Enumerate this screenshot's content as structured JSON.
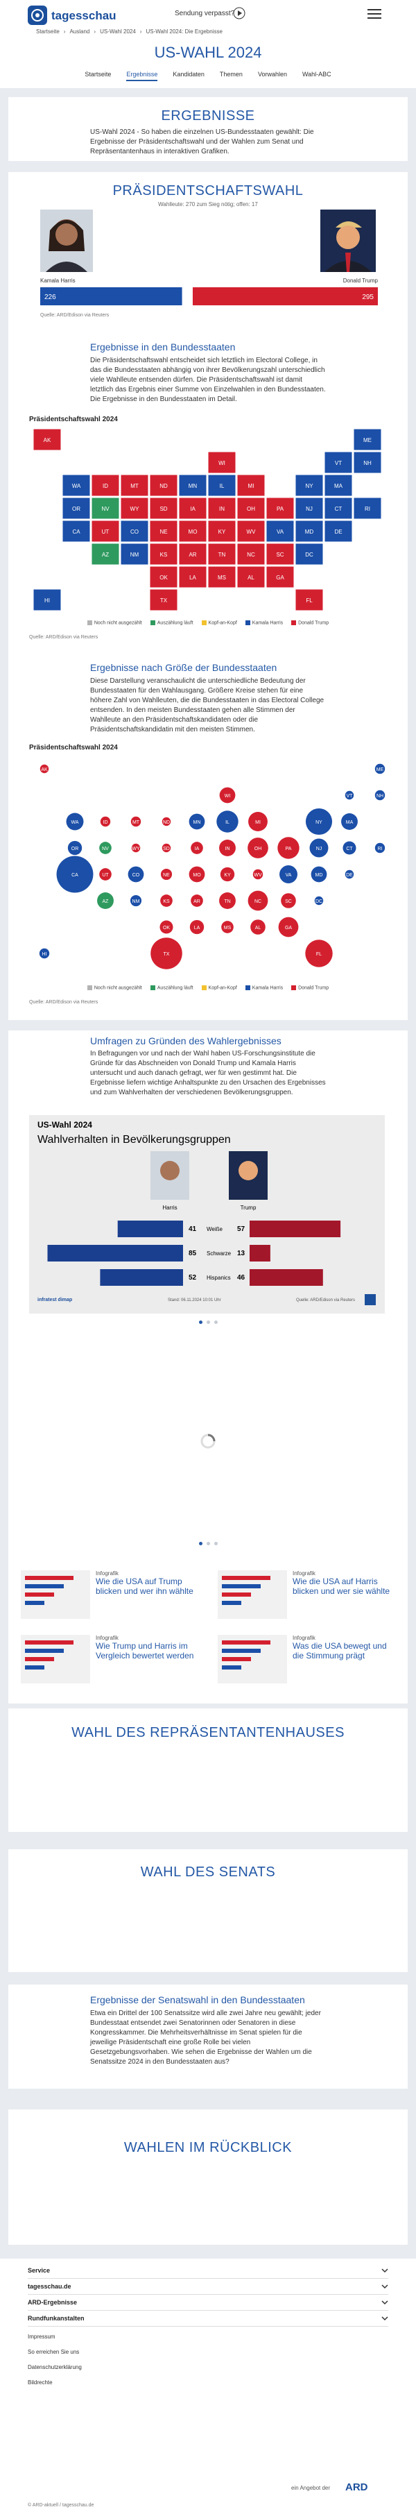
{
  "header": {
    "logo": "tagesschau",
    "missed": "Sendung verpasst?"
  },
  "breadcrumb": [
    "Startseite",
    "Ausland",
    "US-Wahl 2024",
    "US-Wahl 2024: Die Ergebnisse"
  ],
  "page_title": "US-WAHL 2024",
  "nav": [
    "Startseite",
    "Ergebnisse",
    "Kandidaten",
    "Themen",
    "Vorwahlen",
    "Wahl-ABC"
  ],
  "intro": {
    "title": "ERGEBNISSE",
    "text": "US-Wahl 2024 - So haben die einzelnen US-Bundesstaaten gewählt: Die Ergebnisse der Präsidentschaftswahl und der Wahlen zum Senat und Repräsentantenhaus in interaktiven Grafiken."
  },
  "president": {
    "title": "PRÄSIDENTSCHAFTSWAHL",
    "subtitle": "Wahlleute: 270 zum Sieg nötig; offen: 17"
  },
  "sections": {
    "states": {
      "title": "Ergebnisse in den Bundesstaaten",
      "text": "Die Präsidentschaftswahl entscheidet sich letztlich im Electoral College, in das die Bundesstaaten abhängig von ihrer Bevölkerungszahl unterschiedlich viele Wahlleute entsenden dürfen. Die Präsidentschaftswahl ist damit letztlich das Ergebnis einer Summe von Einzelwahlen in den Bundesstaaten. Die Ergebnisse in den Bundesstaaten im Detail."
    },
    "size": {
      "title": "Ergebnisse nach Größe der Bundesstaaten",
      "text": "Diese Darstellung veranschaulicht die unterschiedliche Bedeutung der Bundesstaaten für den Wahlausgang. Größere Kreise stehen für eine höhere Zahl von Wahlleuten, die die Bundesstaaten in das Electoral College entsenden. In den meisten Bundesstaaten gehen alle Stimmen der Wahlleute an den Präsidentschaftskandidaten oder die Präsidentschaftskandidatin mit den meisten Stimmen."
    },
    "polls": {
      "title": "Umfragen zu Gründen des Wahlergebnisses",
      "text": "In Befragungen vor und nach der Wahl haben US-Forschungsinstitute die Gründe für das Abschneiden von Donald Trump und Kamala Harris untersucht und auch danach gefragt, wer für wen gestimmt hat. Die Ergebnisse liefern wichtige Anhaltspunkte zu den Ursachen des Ergebnisses und zum Wahlverhalten der verschiedenen Bevölkerungsgruppen."
    }
  },
  "chart_data": [
    {
      "type": "electoral_bar",
      "series": [
        {
          "name": "Kamala Harris",
          "color": "#1b4fa8",
          "values": [
            226
          ]
        },
        {
          "name": "Donald Trump",
          "color": "#d3202f",
          "values": [
            295
          ]
        }
      ],
      "xlim": [
        0,
        538
      ],
      "source": "Quelle: ARD/Edison via Reuters"
    },
    {
      "type": "map",
      "title": "Präsidentschaftswahl 2024",
      "legend": [
        {
          "name": "Noch nicht ausgezählt",
          "color": "#b3b3b3"
        },
        {
          "name": "Auszählung läuft",
          "color": "#2e9a5e"
        },
        {
          "name": "Kopf-an-Kopf",
          "color": "#f2c12e"
        },
        {
          "name": "Kamala Harris",
          "color": "#1b4fa8"
        },
        {
          "name": "Donald Trump",
          "color": "#d3202f"
        }
      ],
      "states": [
        {
          "abbr": "AK",
          "status": 4,
          "electors": 3
        },
        {
          "abbr": "ME",
          "status": 3,
          "electors": 4
        },
        {
          "abbr": "WI",
          "status": 4,
          "electors": 10
        },
        {
          "abbr": "VT",
          "status": 3,
          "electors": 3
        },
        {
          "abbr": "NH",
          "status": 3,
          "electors": 4
        },
        {
          "abbr": "WA",
          "status": 3,
          "electors": 12
        },
        {
          "abbr": "ID",
          "status": 4,
          "electors": 4
        },
        {
          "abbr": "MT",
          "status": 4,
          "electors": 4
        },
        {
          "abbr": "ND",
          "status": 4,
          "electors": 3
        },
        {
          "abbr": "MN",
          "status": 3,
          "electors": 10
        },
        {
          "abbr": "IL",
          "status": 3,
          "electors": 19
        },
        {
          "abbr": "MI",
          "status": 4,
          "electors": 15
        },
        {
          "abbr": "NY",
          "status": 3,
          "electors": 28
        },
        {
          "abbr": "MA",
          "status": 3,
          "electors": 11
        },
        {
          "abbr": "OR",
          "status": 3,
          "electors": 8
        },
        {
          "abbr": "NV",
          "status": 1,
          "electors": 6
        },
        {
          "abbr": "WY",
          "status": 4,
          "electors": 3
        },
        {
          "abbr": "SD",
          "status": 4,
          "electors": 3
        },
        {
          "abbr": "IA",
          "status": 4,
          "electors": 6
        },
        {
          "abbr": "IN",
          "status": 4,
          "electors": 11
        },
        {
          "abbr": "OH",
          "status": 4,
          "electors": 17
        },
        {
          "abbr": "PA",
          "status": 4,
          "electors": 19
        },
        {
          "abbr": "NJ",
          "status": 3,
          "electors": 14
        },
        {
          "abbr": "CT",
          "status": 3,
          "electors": 7
        },
        {
          "abbr": "RI",
          "status": 3,
          "electors": 4
        },
        {
          "abbr": "CA",
          "status": 3,
          "electors": 54
        },
        {
          "abbr": "UT",
          "status": 4,
          "electors": 6
        },
        {
          "abbr": "CO",
          "status": 3,
          "electors": 10
        },
        {
          "abbr": "NE",
          "status": 4,
          "electors": 5
        },
        {
          "abbr": "MO",
          "status": 4,
          "electors": 10
        },
        {
          "abbr": "KY",
          "status": 4,
          "electors": 8
        },
        {
          "abbr": "WV",
          "status": 4,
          "electors": 4
        },
        {
          "abbr": "VA",
          "status": 3,
          "electors": 13
        },
        {
          "abbr": "MD",
          "status": 3,
          "electors": 10
        },
        {
          "abbr": "DE",
          "status": 3,
          "electors": 3
        },
        {
          "abbr": "AZ",
          "status": 1,
          "electors": 11
        },
        {
          "abbr": "NM",
          "status": 3,
          "electors": 5
        },
        {
          "abbr": "KS",
          "status": 4,
          "electors": 6
        },
        {
          "abbr": "AR",
          "status": 4,
          "electors": 6
        },
        {
          "abbr": "TN",
          "status": 4,
          "electors": 11
        },
        {
          "abbr": "NC",
          "status": 4,
          "electors": 16
        },
        {
          "abbr": "SC",
          "status": 4,
          "electors": 9
        },
        {
          "abbr": "DC",
          "status": 3,
          "electors": 3
        },
        {
          "abbr": "OK",
          "status": 4,
          "electors": 7
        },
        {
          "abbr": "LA",
          "status": 4,
          "electors": 8
        },
        {
          "abbr": "MS",
          "status": 4,
          "electors": 6
        },
        {
          "abbr": "AL",
          "status": 4,
          "electors": 9
        },
        {
          "abbr": "GA",
          "status": 4,
          "electors": 16
        },
        {
          "abbr": "HI",
          "status": 3,
          "electors": 4
        },
        {
          "abbr": "TX",
          "status": 4,
          "electors": 40
        },
        {
          "abbr": "FL",
          "status": 4,
          "electors": 30
        }
      ],
      "source": "Quelle: ARD/Edison via Reuters"
    },
    {
      "type": "bubble",
      "title": "Präsidentschaftswahl 2024",
      "legend": [
        {
          "name": "Noch nicht ausgezählt",
          "color": "#b3b3b3"
        },
        {
          "name": "Auszählung läuft",
          "color": "#2e9a5e"
        },
        {
          "name": "Kopf-an-Kopf",
          "color": "#f2c12e"
        },
        {
          "name": "Kamala Harris",
          "color": "#1b4fa8"
        },
        {
          "name": "Donald Trump",
          "color": "#d3202f"
        }
      ],
      "states": [
        {
          "abbr": "AK",
          "status": 4,
          "electors": 3
        },
        {
          "abbr": "ME",
          "status": 3,
          "electors": 4
        },
        {
          "abbr": "WI",
          "status": 4,
          "electors": 10
        },
        {
          "abbr": "VT",
          "status": 3,
          "electors": 3
        },
        {
          "abbr": "NH",
          "status": 3,
          "electors": 4
        },
        {
          "abbr": "WA",
          "status": 3,
          "electors": 12
        },
        {
          "abbr": "ID",
          "status": 4,
          "electors": 4
        },
        {
          "abbr": "MT",
          "status": 4,
          "electors": 4
        },
        {
          "abbr": "ND",
          "status": 4,
          "electors": 3
        },
        {
          "abbr": "MN",
          "status": 3,
          "electors": 10
        },
        {
          "abbr": "IL",
          "status": 3,
          "electors": 19
        },
        {
          "abbr": "MI",
          "status": 4,
          "electors": 15
        },
        {
          "abbr": "NY",
          "status": 3,
          "electors": 28
        },
        {
          "abbr": "MA",
          "status": 3,
          "electors": 11
        },
        {
          "abbr": "OR",
          "status": 3,
          "electors": 8
        },
        {
          "abbr": "NV",
          "status": 1,
          "electors": 6
        },
        {
          "abbr": "WY",
          "status": 4,
          "electors": 3
        },
        {
          "abbr": "SD",
          "status": 4,
          "electors": 3
        },
        {
          "abbr": "IA",
          "status": 4,
          "electors": 6
        },
        {
          "abbr": "IN",
          "status": 4,
          "electors": 11
        },
        {
          "abbr": "OH",
          "status": 4,
          "electors": 17
        },
        {
          "abbr": "PA",
          "status": 4,
          "electors": 19
        },
        {
          "abbr": "NJ",
          "status": 3,
          "electors": 14
        },
        {
          "abbr": "CT",
          "status": 3,
          "electors": 7
        },
        {
          "abbr": "RI",
          "status": 3,
          "electors": 4
        },
        {
          "abbr": "CA",
          "status": 3,
          "electors": 54
        },
        {
          "abbr": "UT",
          "status": 4,
          "electors": 6
        },
        {
          "abbr": "CO",
          "status": 3,
          "electors": 10
        },
        {
          "abbr": "NE",
          "status": 4,
          "electors": 5
        },
        {
          "abbr": "MO",
          "status": 4,
          "electors": 10
        },
        {
          "abbr": "KY",
          "status": 4,
          "electors": 8
        },
        {
          "abbr": "WV",
          "status": 4,
          "electors": 4
        },
        {
          "abbr": "VA",
          "status": 3,
          "electors": 13
        },
        {
          "abbr": "MD",
          "status": 3,
          "electors": 10
        },
        {
          "abbr": "DE",
          "status": 3,
          "electors": 3
        },
        {
          "abbr": "AZ",
          "status": 1,
          "electors": 11
        },
        {
          "abbr": "NM",
          "status": 3,
          "electors": 5
        },
        {
          "abbr": "KS",
          "status": 4,
          "electors": 6
        },
        {
          "abbr": "AR",
          "status": 4,
          "electors": 6
        },
        {
          "abbr": "TN",
          "status": 4,
          "electors": 11
        },
        {
          "abbr": "NC",
          "status": 4,
          "electors": 16
        },
        {
          "abbr": "SC",
          "status": 4,
          "electors": 9
        },
        {
          "abbr": "DC",
          "status": 3,
          "electors": 3
        },
        {
          "abbr": "OK",
          "status": 4,
          "electors": 7
        },
        {
          "abbr": "LA",
          "status": 4,
          "electors": 8
        },
        {
          "abbr": "MS",
          "status": 4,
          "electors": 6
        },
        {
          "abbr": "AL",
          "status": 4,
          "electors": 9
        },
        {
          "abbr": "GA",
          "status": 4,
          "electors": 16
        },
        {
          "abbr": "HI",
          "status": 3,
          "electors": 4
        },
        {
          "abbr": "TX",
          "status": 4,
          "electors": 40
        },
        {
          "abbr": "FL",
          "status": 4,
          "electors": 30
        }
      ],
      "source": "Quelle: ARD/Edison via Reuters"
    },
    {
      "type": "diverging_bar",
      "title": "US-Wahl 2024",
      "subtitle": "Wahlverhalten in Bevölkerungsgruppen",
      "categories": [
        "Weiße",
        "Schwarze",
        "Hispanics"
      ],
      "series": [
        {
          "name": "Harris",
          "color": "#1b3f8f",
          "values": [
            41,
            85,
            52
          ]
        },
        {
          "name": "Trump",
          "color": "#a3172a",
          "values": [
            57,
            13,
            46
          ]
        }
      ],
      "xlim": [
        0,
        100
      ],
      "brand": "infratest dimap",
      "date": "Stand: 06.11.2024 10:01 Uhr",
      "source": "Quelle: ARD/Edison via Reuters"
    }
  ],
  "teasers": [
    {
      "kicker": "Infografik",
      "title": "Wie die USA auf Trump blicken und wer ihn wählte"
    },
    {
      "kicker": "Infografik",
      "title": "Wie die USA auf Harris blicken und wer sie wählte"
    },
    {
      "kicker": "Infografik",
      "title": "Wie Trump und Harris im Vergleich bewertet werden"
    },
    {
      "kicker": "Infografik",
      "title": "Was die USA bewegt und die Stimmung prägt"
    }
  ],
  "house": {
    "title": "WAHL DES REPRÄSENTANTENHAUSES"
  },
  "senate": {
    "title": "WAHL DES SENATS"
  },
  "senate_states": {
    "title": "Ergebnisse der Senatswahl in den Bundesstaaten",
    "text": "Etwa ein Drittel der 100 Senatssitze wird alle zwei Jahre neu gewählt; jeder Bundesstaat entsendet zwei Senatorinnen oder Senatoren in diese Kongresskammer. Die Mehrheitsverhältnisse im Senat spielen für die jeweilige Präsidentschaft eine große Rolle bei vielen Gesetzgebungsvorhaben. Wie sehen die Ergebnisse der Wahlen um die Senatssitze 2024 in den Bundesstaaten aus?"
  },
  "retro": {
    "title": "WAHLEN IM RÜCKBLICK"
  },
  "footer": {
    "menus": [
      "Service",
      "tagesschau.de",
      "ARD-Ergebnisse",
      "Rundfunkanstalten"
    ],
    "links": [
      "Impressum",
      "So erreichen Sie uns",
      "Datenschutzerklärung",
      "Bildrechte"
    ],
    "ard_text": "ein Angebot der",
    "ard_logo": "ARD",
    "copyright": "© ARD-aktuell / tagesschau.de"
  }
}
